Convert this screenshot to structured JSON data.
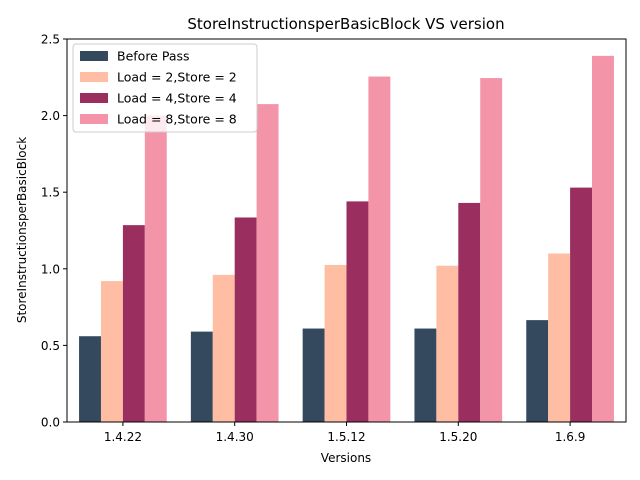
{
  "chart_data": {
    "type": "bar",
    "title": "StoreInstructionsperBasicBlock VS version",
    "xlabel": "Versions",
    "ylabel": "StoreInstructionsperBasicBlock",
    "ylim": [
      0,
      2.5
    ],
    "yticks": [
      "0.0",
      "0.5",
      "1.0",
      "1.5",
      "2.0",
      "2.5"
    ],
    "ytick_values": [
      0,
      0.5,
      1.0,
      1.5,
      2.0,
      2.5
    ],
    "categories": [
      "1.4.22",
      "1.4.30",
      "1.5.12",
      "1.5.20",
      "1.6.9"
    ],
    "grid": false,
    "legend_position": "top-left",
    "series": [
      {
        "name": "Before Pass",
        "color": "#34495e",
        "values": [
          0.56,
          0.59,
          0.61,
          0.61,
          0.665
        ]
      },
      {
        "name": "Load = 2,Store = 2",
        "color": "#ffbea3",
        "values": [
          0.92,
          0.96,
          1.025,
          1.02,
          1.1
        ]
      },
      {
        "name": "Load = 4,Store = 4",
        "color": "#992e5f",
        "values": [
          1.285,
          1.335,
          1.44,
          1.43,
          1.53
        ]
      },
      {
        "name": "Load = 8,Store = 8",
        "color": "#f394a8",
        "values": [
          2.0,
          2.075,
          2.255,
          2.245,
          2.39
        ]
      }
    ]
  }
}
